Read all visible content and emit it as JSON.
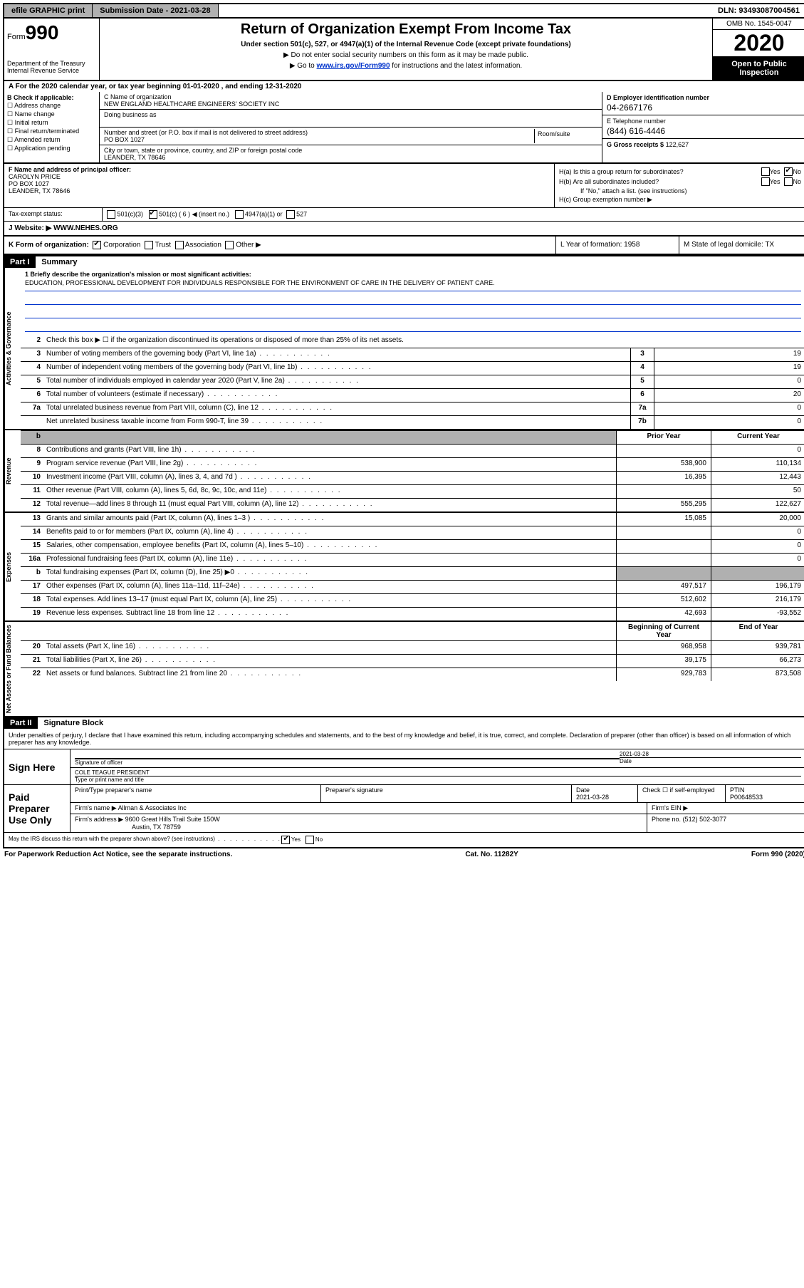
{
  "topbar": {
    "efile": "efile GRAPHIC print",
    "submission": "Submission Date - 2021-03-28",
    "dln": "DLN: 93493087004561"
  },
  "header": {
    "form_label": "Form",
    "form_num": "990",
    "dept": "Department of the Treasury\nInternal Revenue Service",
    "title": "Return of Organization Exempt From Income Tax",
    "sub": "Under section 501(c), 527, or 4947(a)(1) of the Internal Revenue Code (except private foundations)",
    "note1": "▶ Do not enter social security numbers on this form as it may be made public.",
    "note2_a": "▶ Go to ",
    "note2_link": "www.irs.gov/Form990",
    "note2_b": " for instructions and the latest information.",
    "omb": "OMB No. 1545-0047",
    "year": "2020",
    "open": "Open to Public Inspection"
  },
  "rowA": "A For the 2020 calendar year, or tax year beginning 01-01-2020    , and ending 12-31-2020",
  "B": {
    "label": "B Check if applicable:",
    "items": [
      "Address change",
      "Name change",
      "Initial return",
      "Final return/terminated",
      "Amended return",
      "Application pending"
    ]
  },
  "C": {
    "name_label": "C Name of organization",
    "name": "NEW ENGLAND HEALTHCARE ENGINEERS' SOCIETY INC",
    "dba_label": "Doing business as",
    "addr_label": "Number and street (or P.O. box if mail is not delivered to street address)",
    "room_label": "Room/suite",
    "addr": "PO BOX 1027",
    "city_label": "City or town, state or province, country, and ZIP or foreign postal code",
    "city": "LEANDER, TX  78646"
  },
  "D": {
    "ein_label": "D Employer identification number",
    "ein": "04-2667176",
    "tel_label": "E Telephone number",
    "tel": "(844) 616-4446",
    "gross_label": "G Gross receipts $",
    "gross": "122,627"
  },
  "F": {
    "label": "F  Name and address of principal officer:",
    "name": "CAROLYN PRICE",
    "addr1": "PO BOX 1027",
    "addr2": "LEANDER, TX  78646"
  },
  "H": {
    "a": "H(a)  Is this a group return for subordinates?",
    "b": "H(b)  Are all subordinates included?",
    "b_note": "If \"No,\" attach a list. (see instructions)",
    "c": "H(c)  Group exemption number ▶",
    "yes": "Yes",
    "no": "No"
  },
  "I": {
    "label": "Tax-exempt status:",
    "opt1": "501(c)(3)",
    "opt2": "501(c) ( 6 ) ◀ (insert no.)",
    "opt3": "4947(a)(1) or",
    "opt4": "527"
  },
  "J": {
    "label": "J   Website: ▶",
    "val": "WWW.NEHES.ORG"
  },
  "K": {
    "label": "K Form of organization:",
    "opts": [
      "Corporation",
      "Trust",
      "Association",
      "Other ▶"
    ],
    "L": "L Year of formation: 1958",
    "M": "M State of legal domicile: TX"
  },
  "part1": {
    "header": "Part I",
    "title": "Summary",
    "mission_label": "1   Briefly describe the organization's mission or most significant activities:",
    "mission": "EDUCATION, PROFESSIONAL DEVELOPMENT FOR INDIVIDUALS RESPONSIBLE FOR THE ENVIRONMENT OF CARE IN THE DELIVERY OF PATIENT CARE.",
    "line2": "Check this box ▶ ☐  if the organization discontinued its operations or disposed of more than 25% of its net assets.",
    "vtab1": "Activities & Governance",
    "vtab2": "Revenue",
    "vtab3": "Expenses",
    "vtab4": "Net Assets or Fund Balances",
    "col_prior": "Prior Year",
    "col_current": "Current Year",
    "col_begin": "Beginning of Current Year",
    "col_end": "End of Year",
    "rows_gov": [
      {
        "n": "3",
        "l": "Number of voting members of the governing body (Part VI, line 1a)",
        "box": "3",
        "v": "19"
      },
      {
        "n": "4",
        "l": "Number of independent voting members of the governing body (Part VI, line 1b)",
        "box": "4",
        "v": "19"
      },
      {
        "n": "5",
        "l": "Total number of individuals employed in calendar year 2020 (Part V, line 2a)",
        "box": "5",
        "v": "0"
      },
      {
        "n": "6",
        "l": "Total number of volunteers (estimate if necessary)",
        "box": "6",
        "v": "20"
      },
      {
        "n": "7a",
        "l": "Total unrelated business revenue from Part VIII, column (C), line 12",
        "box": "7a",
        "v": "0"
      },
      {
        "n": "",
        "l": "Net unrelated business taxable income from Form 990-T, line 39",
        "box": "7b",
        "v": "0"
      }
    ],
    "rows_rev": [
      {
        "n": "8",
        "l": "Contributions and grants (Part VIII, line 1h)",
        "p": "",
        "c": "0"
      },
      {
        "n": "9",
        "l": "Program service revenue (Part VIII, line 2g)",
        "p": "538,900",
        "c": "110,134"
      },
      {
        "n": "10",
        "l": "Investment income (Part VIII, column (A), lines 3, 4, and 7d )",
        "p": "16,395",
        "c": "12,443"
      },
      {
        "n": "11",
        "l": "Other revenue (Part VIII, column (A), lines 5, 6d, 8c, 9c, 10c, and 11e)",
        "p": "",
        "c": "50"
      },
      {
        "n": "12",
        "l": "Total revenue—add lines 8 through 11 (must equal Part VIII, column (A), line 12)",
        "p": "555,295",
        "c": "122,627"
      }
    ],
    "rows_exp": [
      {
        "n": "13",
        "l": "Grants and similar amounts paid (Part IX, column (A), lines 1–3 )",
        "p": "15,085",
        "c": "20,000"
      },
      {
        "n": "14",
        "l": "Benefits paid to or for members (Part IX, column (A), line 4)",
        "p": "",
        "c": "0"
      },
      {
        "n": "15",
        "l": "Salaries, other compensation, employee benefits (Part IX, column (A), lines 5–10)",
        "p": "",
        "c": "0"
      },
      {
        "n": "16a",
        "l": "Professional fundraising fees (Part IX, column (A), line 11e)",
        "p": "",
        "c": "0"
      },
      {
        "n": "b",
        "l": "Total fundraising expenses (Part IX, column (D), line 25) ▶0",
        "p": "GREY",
        "c": "GREY"
      },
      {
        "n": "17",
        "l": "Other expenses (Part IX, column (A), lines 11a–11d, 11f–24e)",
        "p": "497,517",
        "c": "196,179"
      },
      {
        "n": "18",
        "l": "Total expenses. Add lines 13–17 (must equal Part IX, column (A), line 25)",
        "p": "512,602",
        "c": "216,179"
      },
      {
        "n": "19",
        "l": "Revenue less expenses. Subtract line 18 from line 12",
        "p": "42,693",
        "c": "-93,552"
      }
    ],
    "rows_net": [
      {
        "n": "20",
        "l": "Total assets (Part X, line 16)",
        "p": "968,958",
        "c": "939,781"
      },
      {
        "n": "21",
        "l": "Total liabilities (Part X, line 26)",
        "p": "39,175",
        "c": "66,273"
      },
      {
        "n": "22",
        "l": "Net assets or fund balances. Subtract line 21 from line 20",
        "p": "929,783",
        "c": "873,508"
      }
    ]
  },
  "part2": {
    "header": "Part II",
    "title": "Signature Block",
    "intro": "Under penalties of perjury, I declare that I have examined this return, including accompanying schedules and statements, and to the best of my knowledge and belief, it is true, correct, and complete. Declaration of preparer (other than officer) is based on all information of which preparer has any knowledge.",
    "sign_here": "Sign Here",
    "sig_officer": "Signature of officer",
    "sig_date": "Date",
    "sig_date_val": "2021-03-28",
    "officer_name": "COLE TEAGUE PRESIDENT",
    "officer_label": "Type or print name and title",
    "paid": "Paid Preparer Use Only",
    "prep_name_label": "Print/Type preparer's name",
    "prep_sig_label": "Preparer's signature",
    "date_label": "Date",
    "date_val": "2021-03-28",
    "check_self": "Check ☐ if self-employed",
    "ptin_label": "PTIN",
    "ptin": "P00648533",
    "firm_name_label": "Firm's name    ▶",
    "firm_name": "Allman & Associates Inc",
    "firm_ein_label": "Firm's EIN ▶",
    "firm_addr_label": "Firm's address ▶",
    "firm_addr1": "9600 Great Hills Trail Suite 150W",
    "firm_addr2": "Austin, TX  78759",
    "phone_label": "Phone no.",
    "phone": "(512) 502-3077",
    "may_irs": "May the IRS discuss this return with the preparer shown above? (see instructions)",
    "yes": "Yes",
    "no": "No"
  },
  "footer": {
    "left": "For Paperwork Reduction Act Notice, see the separate instructions.",
    "mid": "Cat. No. 11282Y",
    "right": "Form 990 (2020)"
  }
}
